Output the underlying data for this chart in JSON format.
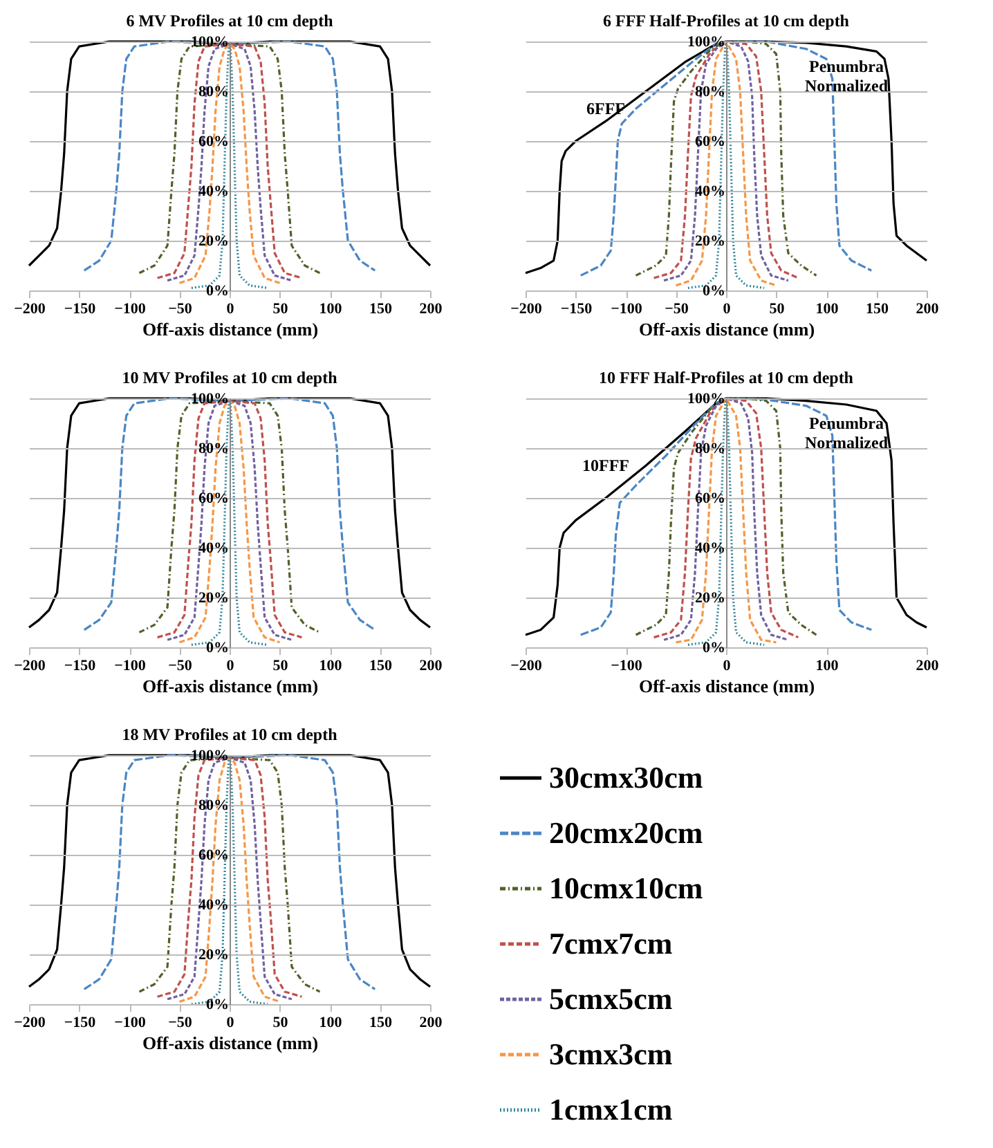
{
  "chart_data": [
    {
      "type": "line",
      "title": "6 MV Profiles at 10 cm depth",
      "xlabel": "Off-axis distance (mm)",
      "xlim": [
        -200,
        200
      ],
      "xticks": [
        -200,
        -150,
        -100,
        -50,
        0,
        50,
        100,
        150,
        200
      ],
      "ylim": [
        0,
        100
      ],
      "yticks": [
        {
          "value": 0,
          "label": "0%"
        },
        {
          "value": 20,
          "label": "20%"
        },
        {
          "value": 40,
          "label": "40%"
        },
        {
          "value": 60,
          "label": "60%"
        },
        {
          "value": 80,
          "label": "80%"
        },
        {
          "value": 100,
          "label": "100%"
        }
      ],
      "grid": "y",
      "series": [
        {
          "color": "#000000",
          "line_style": "solid",
          "x": [
            -200,
            -190,
            -180,
            -172,
            -168,
            -165,
            -162,
            -158,
            -150,
            -120,
            -80,
            -40,
            0,
            40,
            80,
            120,
            150,
            158,
            162,
            165,
            168,
            172,
            180,
            190,
            200
          ],
          "values": [
            10,
            14,
            18,
            25,
            40,
            55,
            80,
            93,
            98,
            100,
            100,
            100,
            99,
            100,
            100,
            100,
            98,
            93,
            80,
            55,
            40,
            25,
            18,
            14,
            10
          ]
        },
        {
          "color": "#4a86c5",
          "line_style": "dashed",
          "x": [
            -145,
            -130,
            -118,
            -113,
            -110,
            -107,
            -103,
            -95,
            -60,
            0,
            60,
            95,
            103,
            107,
            110,
            113,
            118,
            130,
            145
          ],
          "values": [
            8,
            12,
            20,
            40,
            55,
            80,
            93,
            98,
            100,
            99,
            100,
            98,
            93,
            80,
            55,
            40,
            20,
            12,
            8
          ]
        },
        {
          "color": "#4f6228",
          "line_style": "dashed",
          "x": [
            -90,
            -75,
            -62,
            -58,
            -55,
            -52,
            -48,
            -40,
            0,
            40,
            48,
            52,
            55,
            58,
            62,
            75,
            90
          ],
          "values": [
            7,
            10,
            18,
            40,
            55,
            80,
            93,
            98,
            99,
            98,
            93,
            80,
            55,
            40,
            18,
            10,
            7
          ]
        },
        {
          "color": "#c0504d",
          "line_style": "dashed",
          "x": [
            -72,
            -55,
            -45,
            -41,
            -38,
            -35,
            -31,
            -25,
            0,
            25,
            31,
            35,
            38,
            41,
            45,
            55,
            72
          ],
          "values": [
            5,
            7,
            15,
            35,
            50,
            75,
            92,
            98,
            99,
            98,
            92,
            75,
            50,
            35,
            15,
            7,
            5
          ]
        },
        {
          "color": "#7060a0",
          "line_style": "dashed",
          "x": [
            -62,
            -45,
            -35,
            -31,
            -28,
            -25,
            -21,
            -15,
            0,
            15,
            21,
            25,
            28,
            31,
            35,
            45,
            62
          ],
          "values": [
            4,
            6,
            14,
            33,
            50,
            72,
            90,
            97,
            99,
            97,
            90,
            72,
            50,
            33,
            14,
            6,
            4
          ]
        },
        {
          "color": "#f79646",
          "line_style": "dashed",
          "x": [
            -50,
            -35,
            -24,
            -20,
            -17,
            -14,
            -10,
            -5,
            0,
            5,
            10,
            14,
            17,
            20,
            24,
            35,
            50
          ],
          "values": [
            3,
            5,
            14,
            32,
            50,
            72,
            90,
            97,
            99,
            97,
            90,
            72,
            50,
            32,
            14,
            5,
            3
          ]
        },
        {
          "color": "#31859c",
          "line_style": "dotted",
          "x": [
            -38,
            -20,
            -10,
            -7,
            -5,
            -3,
            -1,
            0,
            1,
            3,
            5,
            7,
            10,
            20,
            38
          ],
          "values": [
            1,
            2,
            6,
            20,
            50,
            80,
            97,
            99,
            97,
            80,
            50,
            20,
            6,
            2,
            1
          ]
        }
      ]
    },
    {
      "type": "line",
      "title": "6 FFF Half-Profiles at 10 cm depth",
      "xlabel": "Off-axis distance (mm)",
      "annotations": [
        "6FFF",
        "Penumbra Normalized"
      ],
      "xlim": [
        -200,
        200
      ],
      "xticks": [
        -200,
        -150,
        -100,
        -50,
        0,
        50,
        100,
        150,
        200
      ],
      "ylim": [
        0,
        100
      ],
      "yticks": [
        {
          "value": 0,
          "label": "0%"
        },
        {
          "value": 20,
          "label": "20%"
        },
        {
          "value": 40,
          "label": "40%"
        },
        {
          "value": 60,
          "label": "60%"
        },
        {
          "value": 80,
          "label": "80%"
        },
        {
          "value": 100,
          "label": "100%"
        }
      ],
      "grid": "y",
      "series": [
        {
          "color": "#000000",
          "line_style": "solid",
          "x": [
            -200,
            -185,
            -172,
            -168,
            -166,
            -164,
            -160,
            -150,
            -120,
            -80,
            -40,
            -10,
            0,
            40,
            80,
            120,
            150,
            158,
            162,
            165,
            167,
            170,
            180,
            190,
            200
          ],
          "values": [
            7,
            9,
            12,
            20,
            40,
            52,
            56,
            60,
            68,
            80,
            92,
            99,
            100,
            100,
            99.5,
            98,
            96,
            93,
            85,
            60,
            35,
            22,
            18,
            15,
            12
          ]
        },
        {
          "color": "#4a86c5",
          "line_style": "dashed",
          "x": [
            -145,
            -125,
            -115,
            -112,
            -110,
            -108,
            -104,
            -90,
            -60,
            -30,
            -10,
            0,
            40,
            80,
            100,
            106,
            108,
            110,
            113,
            125,
            145
          ],
          "values": [
            6,
            10,
            16,
            30,
            45,
            60,
            67,
            73,
            83,
            93,
            99,
            100,
            100,
            97,
            93,
            85,
            60,
            35,
            18,
            12,
            8
          ]
        },
        {
          "color": "#4f6228",
          "line_style": "dashed",
          "x": [
            -90,
            -70,
            -60,
            -57,
            -55,
            -52,
            -48,
            -35,
            -15,
            0,
            20,
            40,
            50,
            54,
            55,
            57,
            62,
            75,
            90
          ],
          "values": [
            6,
            10,
            14,
            30,
            50,
            76,
            81,
            88,
            97,
            100,
            100,
            99,
            95,
            80,
            55,
            30,
            15,
            10,
            6
          ]
        },
        {
          "color": "#c0504d",
          "line_style": "dashed",
          "x": [
            -72,
            -55,
            -45,
            -41,
            -38,
            -35,
            -30,
            -15,
            0,
            20,
            30,
            35,
            38,
            41,
            45,
            55,
            72
          ],
          "values": [
            5,
            7,
            12,
            30,
            55,
            78,
            86,
            96,
            100,
            99,
            94,
            80,
            55,
            30,
            15,
            8,
            5
          ]
        },
        {
          "color": "#7060a0",
          "line_style": "dashed",
          "x": [
            -62,
            -45,
            -35,
            -31,
            -28,
            -25,
            -20,
            -10,
            0,
            15,
            22,
            26,
            28,
            31,
            35,
            45,
            62
          ],
          "values": [
            4,
            6,
            12,
            30,
            55,
            80,
            91,
            97,
            100,
            98,
            92,
            78,
            55,
            30,
            14,
            6,
            4
          ]
        },
        {
          "color": "#f79646",
          "line_style": "dashed",
          "x": [
            -50,
            -35,
            -24,
            -20,
            -17,
            -14,
            -10,
            0,
            10,
            14,
            17,
            20,
            24,
            35,
            50
          ],
          "values": [
            2,
            4,
            12,
            30,
            55,
            80,
            93,
            100,
            93,
            80,
            55,
            30,
            12,
            4,
            2
          ]
        },
        {
          "color": "#31859c",
          "line_style": "dotted",
          "x": [
            -38,
            -20,
            -10,
            -7,
            -5,
            -3,
            -1,
            0,
            1,
            3,
            5,
            7,
            10,
            20,
            38
          ],
          "values": [
            1,
            2,
            6,
            20,
            50,
            80,
            97,
            100,
            97,
            80,
            50,
            20,
            6,
            2,
            1
          ]
        }
      ]
    },
    {
      "type": "line",
      "title": "10 MV Profiles at 10 cm depth",
      "xlabel": "Off-axis distance (mm)",
      "xlim": [
        -200,
        200
      ],
      "xticks": [
        -200,
        -150,
        -100,
        -50,
        0,
        50,
        100,
        150,
        200
      ],
      "ylim": [
        0,
        100
      ],
      "yticks": [
        {
          "value": 0,
          "label": "0%"
        },
        {
          "value": 20,
          "label": "20%"
        },
        {
          "value": 40,
          "label": "40%"
        },
        {
          "value": 60,
          "label": "60%"
        },
        {
          "value": 80,
          "label": "80%"
        },
        {
          "value": 100,
          "label": "100%"
        }
      ],
      "grid": "y",
      "series": [
        {
          "color": "#000000",
          "line_style": "solid",
          "x": [
            -200,
            -190,
            -180,
            -172,
            -168,
            -165,
            -162,
            -158,
            -150,
            -120,
            -80,
            -40,
            0,
            40,
            80,
            120,
            150,
            158,
            162,
            165,
            168,
            172,
            180,
            190,
            200
          ],
          "values": [
            8,
            11,
            15,
            22,
            40,
            55,
            80,
            93,
            98,
            100,
            100,
            100,
            99,
            100,
            100,
            100,
            98,
            93,
            80,
            55,
            40,
            22,
            15,
            11,
            8
          ]
        },
        {
          "color": "#4a86c5",
          "line_style": "dashed",
          "x": [
            -145,
            -130,
            -118,
            -113,
            -110,
            -107,
            -103,
            -95,
            -60,
            0,
            60,
            95,
            103,
            107,
            110,
            113,
            118,
            130,
            145
          ],
          "values": [
            7,
            11,
            18,
            40,
            55,
            80,
            93,
            98,
            100,
            99,
            100,
            98,
            93,
            80,
            55,
            40,
            18,
            11,
            7
          ]
        },
        {
          "color": "#4f6228",
          "line_style": "dashed",
          "x": [
            -90,
            -75,
            -62,
            -58,
            -55,
            -52,
            -48,
            -40,
            0,
            40,
            48,
            52,
            55,
            58,
            62,
            75,
            90
          ],
          "values": [
            6,
            9,
            16,
            40,
            55,
            80,
            93,
            98,
            99,
            98,
            93,
            80,
            55,
            40,
            16,
            9,
            6
          ]
        },
        {
          "color": "#c0504d",
          "line_style": "dashed",
          "x": [
            -72,
            -55,
            -45,
            -41,
            -38,
            -35,
            -31,
            -25,
            0,
            25,
            31,
            35,
            38,
            41,
            45,
            55,
            72
          ],
          "values": [
            4,
            6,
            13,
            35,
            50,
            75,
            92,
            98,
            99,
            98,
            92,
            75,
            50,
            35,
            13,
            6,
            4
          ]
        },
        {
          "color": "#7060a0",
          "line_style": "dashed",
          "x": [
            -62,
            -45,
            -35,
            -31,
            -28,
            -25,
            -21,
            -15,
            0,
            15,
            21,
            25,
            28,
            31,
            35,
            45,
            62
          ],
          "values": [
            3,
            5,
            12,
            33,
            50,
            72,
            90,
            97,
            99,
            97,
            90,
            72,
            50,
            33,
            12,
            5,
            3
          ]
        },
        {
          "color": "#f79646",
          "line_style": "dashed",
          "x": [
            -50,
            -35,
            -24,
            -20,
            -17,
            -14,
            -10,
            -5,
            0,
            5,
            10,
            14,
            17,
            20,
            24,
            35,
            50
          ],
          "values": [
            2,
            4,
            12,
            32,
            50,
            72,
            90,
            97,
            99,
            97,
            90,
            72,
            50,
            32,
            12,
            4,
            2
          ]
        },
        {
          "color": "#31859c",
          "line_style": "dotted",
          "x": [
            -38,
            -20,
            -10,
            -7,
            -5,
            -3,
            -1,
            0,
            1,
            3,
            5,
            7,
            10,
            20,
            38
          ],
          "values": [
            1,
            2,
            6,
            20,
            50,
            80,
            97,
            99,
            97,
            80,
            50,
            20,
            6,
            2,
            1
          ]
        }
      ]
    },
    {
      "type": "line",
      "title": "10 FFF Half-Profiles at 10 cm depth",
      "xlabel": "Off-axis distance (mm)",
      "annotations": [
        "10FFF",
        "Penumbra Normalized"
      ],
      "xlim": [
        -200,
        200
      ],
      "xticks": [
        -200,
        -100,
        0,
        100,
        200
      ],
      "ylim": [
        0,
        100
      ],
      "yticks": [
        {
          "value": 0,
          "label": "0%"
        },
        {
          "value": 20,
          "label": "20%"
        },
        {
          "value": 40,
          "label": "40%"
        },
        {
          "value": 60,
          "label": "60%"
        },
        {
          "value": 80,
          "label": "80%"
        },
        {
          "value": 100,
          "label": "100%"
        }
      ],
      "grid": "y",
      "series": [
        {
          "color": "#000000",
          "line_style": "solid",
          "x": [
            -200,
            -185,
            -172,
            -168,
            -166,
            -162,
            -150,
            -120,
            -80,
            -40,
            -10,
            0,
            40,
            80,
            120,
            150,
            160,
            165,
            167,
            170,
            180,
            190,
            200
          ],
          "values": [
            5,
            7,
            12,
            25,
            40,
            46,
            51,
            60,
            73,
            87,
            98,
            100,
            100,
            99,
            97.5,
            95,
            90,
            75,
            50,
            20,
            13,
            10,
            8
          ]
        },
        {
          "color": "#4a86c5",
          "line_style": "dashed",
          "x": [
            -145,
            -125,
            -115,
            -112,
            -110,
            -106,
            -90,
            -60,
            -30,
            -10,
            0,
            40,
            80,
            100,
            106,
            108,
            110,
            113,
            125,
            145
          ],
          "values": [
            5,
            8,
            14,
            30,
            45,
            58,
            65,
            77,
            90,
            98,
            100,
            99.5,
            97,
            93,
            85,
            60,
            35,
            15,
            10,
            7
          ]
        },
        {
          "color": "#4f6228",
          "line_style": "dashed",
          "x": [
            -90,
            -70,
            -60,
            -57,
            -55,
            -52,
            -48,
            -35,
            -15,
            0,
            20,
            40,
            50,
            54,
            55,
            57,
            62,
            75,
            90
          ],
          "values": [
            5,
            9,
            13,
            30,
            50,
            72,
            78,
            86,
            96,
            100,
            100,
            99,
            95,
            80,
            55,
            30,
            14,
            9,
            5
          ]
        },
        {
          "color": "#c0504d",
          "line_style": "dashed",
          "x": [
            -72,
            -55,
            -45,
            -41,
            -38,
            -35,
            -30,
            -15,
            0,
            20,
            30,
            35,
            38,
            41,
            45,
            55,
            72
          ],
          "values": [
            4,
            6,
            11,
            30,
            55,
            76,
            84,
            95,
            100,
            99,
            94,
            80,
            55,
            30,
            14,
            7,
            4
          ]
        },
        {
          "color": "#7060a0",
          "line_style": "dashed",
          "x": [
            -62,
            -45,
            -35,
            -31,
            -28,
            -25,
            -20,
            -10,
            0,
            15,
            22,
            26,
            28,
            31,
            35,
            45,
            62
          ],
          "values": [
            3,
            5,
            11,
            30,
            55,
            78,
            89,
            97,
            100,
            98,
            92,
            78,
            55,
            30,
            13,
            5,
            3
          ]
        },
        {
          "color": "#f79646",
          "line_style": "dashed",
          "x": [
            -50,
            -35,
            -24,
            -20,
            -17,
            -14,
            -10,
            0,
            10,
            14,
            17,
            20,
            24,
            35,
            50
          ],
          "values": [
            2,
            3,
            11,
            30,
            55,
            80,
            93,
            100,
            93,
            80,
            55,
            30,
            11,
            3,
            2
          ]
        },
        {
          "color": "#31859c",
          "line_style": "dotted",
          "x": [
            -38,
            -20,
            -10,
            -7,
            -5,
            -3,
            -1,
            0,
            1,
            3,
            5,
            7,
            10,
            20,
            38
          ],
          "values": [
            1,
            2,
            6,
            20,
            50,
            80,
            97,
            100,
            97,
            80,
            50,
            20,
            6,
            2,
            1
          ]
        }
      ]
    },
    {
      "type": "line",
      "title": "18 MV Profiles at 10 cm depth",
      "xlabel": "Off-axis distance (mm)",
      "xlim": [
        -200,
        200
      ],
      "xticks": [
        -200,
        -150,
        -100,
        -50,
        0,
        50,
        100,
        150,
        200
      ],
      "ylim": [
        0,
        100
      ],
      "yticks": [
        {
          "value": 0,
          "label": "0%"
        },
        {
          "value": 20,
          "label": "20%"
        },
        {
          "value": 40,
          "label": "40%"
        },
        {
          "value": 60,
          "label": "60%"
        },
        {
          "value": 80,
          "label": "80%"
        },
        {
          "value": 100,
          "label": "100%"
        }
      ],
      "grid": "y",
      "legend": "right",
      "series": [
        {
          "name": "30cmx30cm",
          "color": "#000000",
          "line_style": "solid",
          "x": [
            -200,
            -190,
            -180,
            -172,
            -168,
            -165,
            -162,
            -158,
            -150,
            -120,
            -80,
            -40,
            0,
            40,
            80,
            120,
            150,
            158,
            162,
            165,
            168,
            172,
            180,
            190,
            200
          ],
          "values": [
            7,
            10,
            14,
            22,
            40,
            55,
            80,
            93,
            98,
            100,
            100,
            100,
            99,
            100,
            100,
            100,
            98,
            93,
            80,
            55,
            40,
            22,
            14,
            10,
            7
          ]
        },
        {
          "name": "20cmx20cm",
          "color": "#4a86c5",
          "line_style": "dashed",
          "x": [
            -145,
            -130,
            -118,
            -113,
            -110,
            -107,
            -103,
            -95,
            -60,
            0,
            60,
            95,
            103,
            107,
            110,
            113,
            118,
            130,
            145
          ],
          "values": [
            6,
            10,
            18,
            40,
            55,
            80,
            93,
            98,
            100,
            99,
            100,
            98,
            93,
            80,
            55,
            40,
            18,
            10,
            6
          ]
        },
        {
          "name": "10cmx10cm",
          "color": "#4f6228",
          "line_style": "dashed",
          "x": [
            -90,
            -75,
            -62,
            -58,
            -55,
            -52,
            -48,
            -40,
            0,
            40,
            48,
            52,
            55,
            58,
            62,
            75,
            90
          ],
          "values": [
            5,
            8,
            15,
            40,
            55,
            80,
            93,
            98,
            99,
            98,
            93,
            80,
            55,
            40,
            15,
            8,
            5
          ]
        },
        {
          "name": "7cmx7cm",
          "color": "#c0504d",
          "line_style": "dashed",
          "x": [
            -72,
            -55,
            -45,
            -41,
            -38,
            -35,
            -31,
            -25,
            0,
            25,
            31,
            35,
            38,
            41,
            45,
            55,
            72
          ],
          "values": [
            3,
            5,
            12,
            35,
            50,
            75,
            92,
            98,
            99,
            98,
            92,
            75,
            50,
            35,
            12,
            5,
            3
          ]
        },
        {
          "name": "5cmx5cm",
          "color": "#7060a0",
          "line_style": "dashed",
          "x": [
            -62,
            -45,
            -35,
            -31,
            -28,
            -25,
            -21,
            -15,
            0,
            15,
            21,
            25,
            28,
            31,
            35,
            45,
            62
          ],
          "values": [
            2,
            4,
            11,
            33,
            50,
            72,
            90,
            97,
            99,
            97,
            90,
            72,
            50,
            33,
            11,
            4,
            2
          ]
        },
        {
          "name": "3cmx3cm",
          "color": "#f79646",
          "line_style": "dashed",
          "x": [
            -50,
            -35,
            -24,
            -20,
            -17,
            -14,
            -10,
            -5,
            0,
            5,
            10,
            14,
            17,
            20,
            24,
            35,
            50
          ],
          "values": [
            1,
            3,
            11,
            32,
            50,
            72,
            90,
            97,
            99,
            97,
            90,
            72,
            50,
            32,
            11,
            3,
            1
          ]
        },
        {
          "name": "1cmx1cm",
          "color": "#31859c",
          "line_style": "dotted",
          "x": [
            -38,
            -20,
            -10,
            -7,
            -5,
            -3,
            -1,
            0,
            1,
            3,
            5,
            7,
            10,
            20,
            38
          ],
          "values": [
            0,
            1,
            5,
            20,
            50,
            80,
            97,
            99,
            97,
            80,
            50,
            20,
            5,
            1,
            0
          ]
        }
      ]
    }
  ]
}
